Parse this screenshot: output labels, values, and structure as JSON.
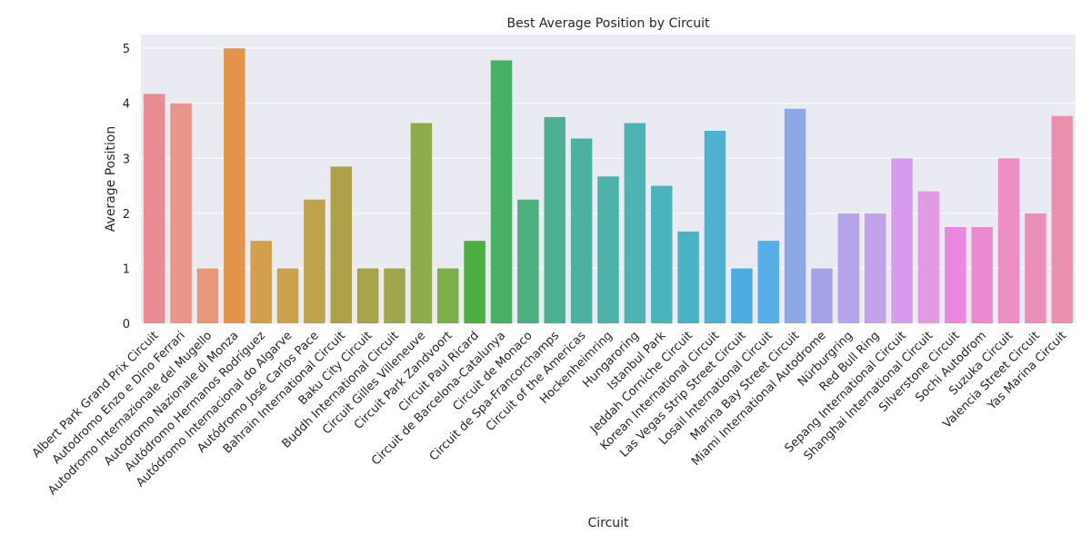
{
  "chart_data": {
    "type": "bar",
    "title": "Best Average Position by Circuit",
    "xlabel": "Circuit",
    "ylabel": "Average Position",
    "ylim": [
      0,
      5.25
    ],
    "yticks": [
      0,
      1,
      2,
      3,
      4,
      5
    ],
    "grid": true,
    "background": "#EAEAF2",
    "categories": [
      "Albert Park Grand Prix Circuit",
      "Autodromo Enzo e Dino Ferrari",
      "Autodromo Internazionale del Mugello",
      "Autodromo Nazionale di Monza",
      "Autódromo Hermanos Rodríguez",
      "Autódromo Internacional do Algarve",
      "Autódromo José Carlos Pace",
      "Bahrain International Circuit",
      "Baku City Circuit",
      "Buddh International Circuit",
      "Circuit Gilles Villeneuve",
      "Circuit Park Zandvoort",
      "Circuit Paul Ricard",
      "Circuit de Barcelona-Catalunya",
      "Circuit de Monaco",
      "Circuit de Spa-Francorchamps",
      "Circuit of the Americas",
      "Hockenheimring",
      "Hungaroring",
      "Istanbul Park",
      "Jeddah Corniche Circuit",
      "Korean International Circuit",
      "Las Vegas Strip Street Circuit",
      "Losail International Circuit",
      "Marina Bay Street Circuit",
      "Miami International Autodrome",
      "Nürburgring",
      "Red Bull Ring",
      "Sepang International Circuit",
      "Shanghai International Circuit",
      "Silverstone Circuit",
      "Sochi Autodrom",
      "Suzuka Circuit",
      "Valencia Street Circuit",
      "Yas Marina Circuit"
    ],
    "values": [
      4.17,
      4.0,
      1.0,
      5.0,
      1.5,
      1.0,
      2.25,
      2.85,
      1.0,
      1.0,
      3.64,
      1.0,
      1.5,
      4.78,
      2.25,
      3.75,
      3.36,
      2.67,
      3.64,
      2.5,
      1.67,
      3.5,
      1.0,
      1.5,
      3.9,
      1.0,
      2.0,
      2.0,
      3.0,
      2.4,
      1.75,
      1.75,
      3.0,
      2.0,
      3.77
    ],
    "colors": [
      "#E98B93",
      "#EA9589",
      "#E7987A",
      "#E2954A",
      "#D19F4D",
      "#CDA24C",
      "#BFA34C",
      "#AFA04A",
      "#A8A44A",
      "#A0A64B",
      "#8EAC4B",
      "#7DB04A",
      "#4CAF3F",
      "#47B062",
      "#4BB07E",
      "#4DB092",
      "#4CB1A0",
      "#4CB2AA",
      "#4DB3B3",
      "#4BB3BC",
      "#4BB1C5",
      "#4CB2CF",
      "#4EADDF",
      "#56AEE6",
      "#8CA9E5",
      "#A4A3E6",
      "#B6A4EA",
      "#C3A2EC",
      "#D79BEC",
      "#E09BE4",
      "#EA87DF",
      "#EA8BD2",
      "#EC8EC3",
      "#EC8FB6",
      "#EA91AD"
    ]
  }
}
